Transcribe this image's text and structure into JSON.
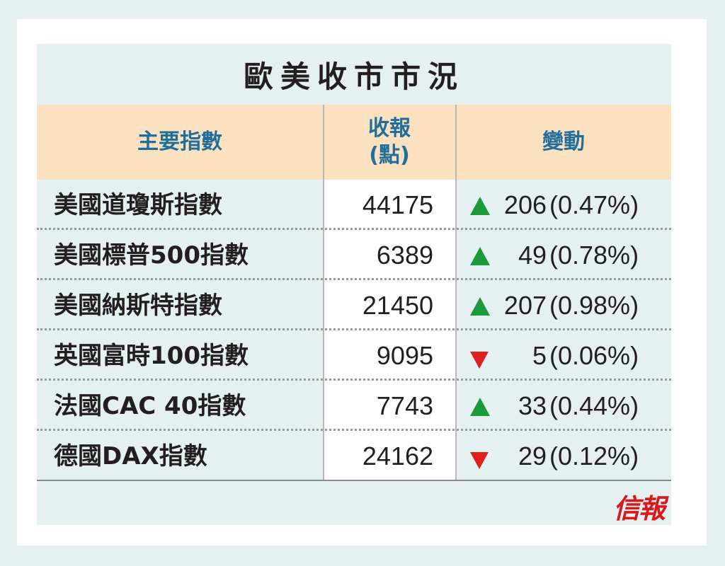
{
  "title": "歐美收市市況",
  "header": {
    "col_index": "主要指數",
    "col_close_line1": "收報",
    "col_close_line2": "(點)",
    "col_change": "變動"
  },
  "rows": [
    {
      "name": "美國道瓊斯指數",
      "close": "44175",
      "direction": "up",
      "points": "206",
      "pct": "(0.47%)"
    },
    {
      "name": "美國標普500指數",
      "close": "6389",
      "direction": "up",
      "points": "49",
      "pct": "(0.78%)"
    },
    {
      "name": "美國納斯特指數",
      "close": "21450",
      "direction": "up",
      "points": "207",
      "pct": "(0.98%)"
    },
    {
      "name": "英國富時100指數",
      "close": "9095",
      "direction": "down",
      "points": "5",
      "pct": "(0.06%)"
    },
    {
      "name": "法國CAC 40指數",
      "close": "7743",
      "direction": "up",
      "points": "33",
      "pct": "(0.44%)"
    },
    {
      "name": "德國DAX指數",
      "close": "24162",
      "direction": "down",
      "points": "29",
      "pct": "(0.12%)"
    }
  ],
  "logo": "信報",
  "colors": {
    "up": "#1a9a3a",
    "down": "#e0201f",
    "header_text": "#1f6f9a",
    "header_bg": "#fce1c1",
    "logo": "#d7191d"
  }
}
